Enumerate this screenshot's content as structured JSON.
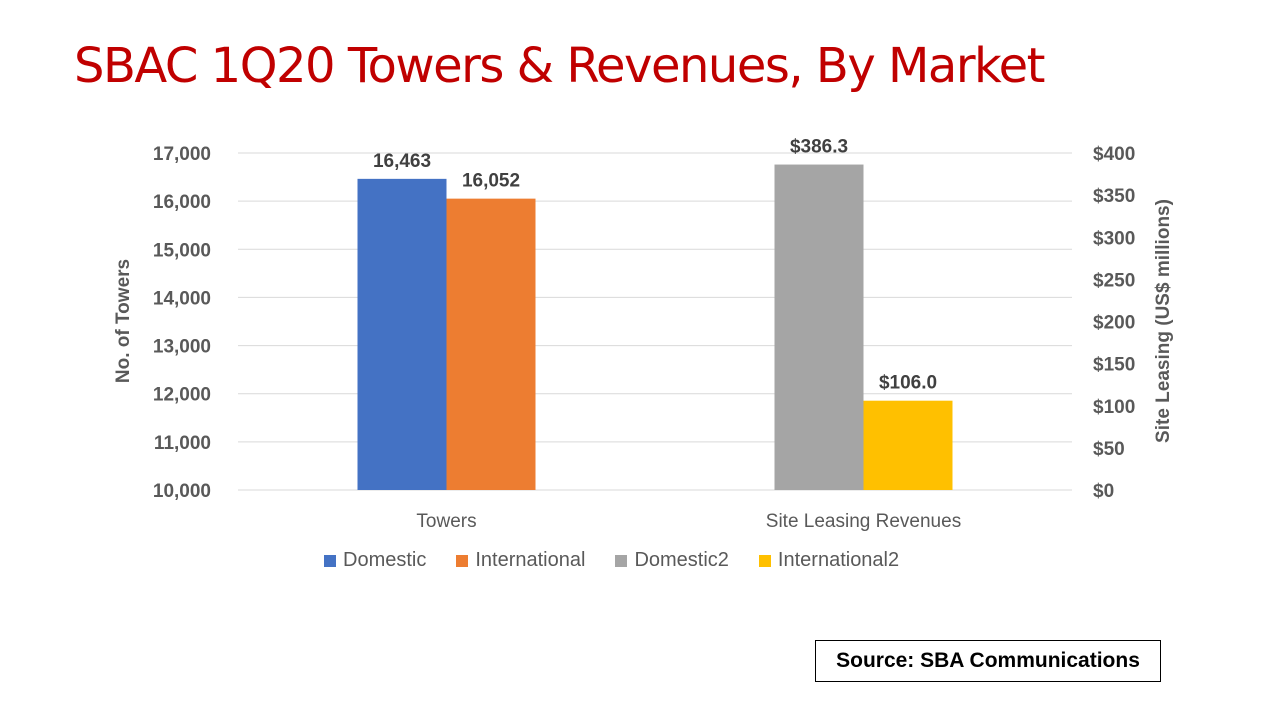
{
  "title": "SBAC 1Q20 Towers & Revenues, By Market",
  "source": "Source: SBA Communications",
  "chart_data": {
    "type": "bar",
    "categories": [
      "Towers",
      "Site Leasing Revenues"
    ],
    "series": [
      {
        "name": "Domestic",
        "axis": "left",
        "category": "Towers",
        "value": 16463,
        "label": "16,463",
        "color": "#4472c4"
      },
      {
        "name": "International",
        "axis": "left",
        "category": "Towers",
        "value": 16052,
        "label": "16,052",
        "color": "#ed7d31"
      },
      {
        "name": "Domestic2",
        "axis": "right",
        "category": "Site Leasing Revenues",
        "value": 386.3,
        "label": "$386.3",
        "color": "#a5a5a5"
      },
      {
        "name": "International2",
        "axis": "right",
        "category": "Site Leasing Revenues",
        "value": 106.0,
        "label": "$106.0",
        "color": "#ffc000"
      }
    ],
    "y_left": {
      "label": "No. of Towers",
      "min": 10000,
      "max": 17000,
      "ticks": [
        "10,000",
        "11,000",
        "12,000",
        "13,000",
        "14,000",
        "15,000",
        "16,000",
        "17,000"
      ]
    },
    "y_right": {
      "label": "Site Leasing (US$ millions)",
      "min": 0,
      "max": 400,
      "ticks": [
        "$0",
        "$50",
        "$100",
        "$150",
        "$200",
        "$250",
        "$300",
        "$350",
        "$400"
      ]
    },
    "grid": true,
    "legend_position": "bottom"
  }
}
